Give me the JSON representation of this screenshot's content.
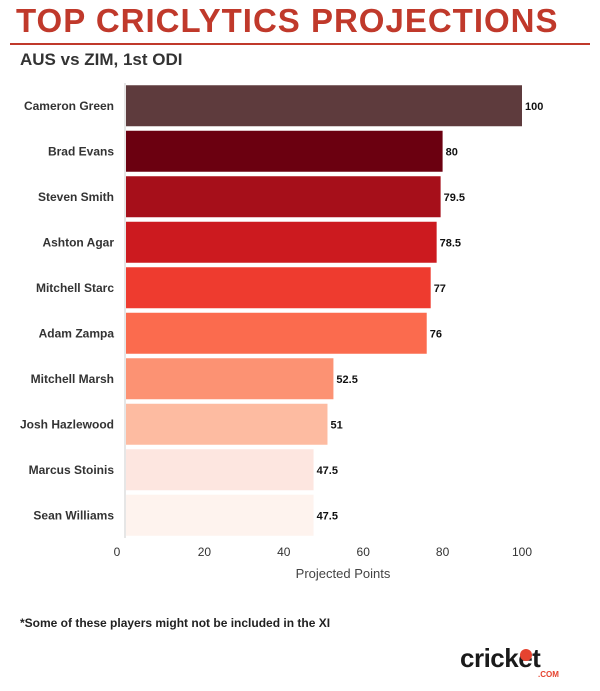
{
  "header": {
    "title": "TOP CRICLYTICS PROJECTIONS",
    "subtitle": "AUS vs ZIM, 1st ODI"
  },
  "footnote": "*Some of these players might not be included in the XI",
  "logo": {
    "main": "cricket",
    "sub": ".COM"
  },
  "chart_data": {
    "type": "bar",
    "orientation": "horizontal",
    "categories": [
      "Cameron Green",
      "Brad Evans",
      "Steven Smith",
      "Ashton Agar",
      "Mitchell Starc",
      "Adam Zampa",
      "Mitchell Marsh",
      "Josh Hazlewood",
      "Marcus Stoinis",
      "Sean Williams"
    ],
    "values": [
      100,
      80,
      79.5,
      78.5,
      77,
      76,
      52.5,
      51,
      47.5,
      47.5
    ],
    "value_labels": [
      "100",
      "80",
      "79.5",
      "78.5",
      "77",
      "76",
      "52.5",
      "51",
      "47.5",
      "47.5"
    ],
    "colors": [
      "#5e3b3d",
      "#6b0010",
      "#a60f1a",
      "#cc1a1f",
      "#ee3b2f",
      "#fb6b4e",
      "#fc9273",
      "#fdbba1",
      "#fde6e0",
      "#fef3ee"
    ],
    "xlabel": "Projected Points",
    "ylabel": "",
    "xlim": [
      0,
      110
    ],
    "xticks": [
      0,
      20,
      40,
      60,
      80,
      100
    ],
    "grid": false,
    "legend": "none"
  }
}
